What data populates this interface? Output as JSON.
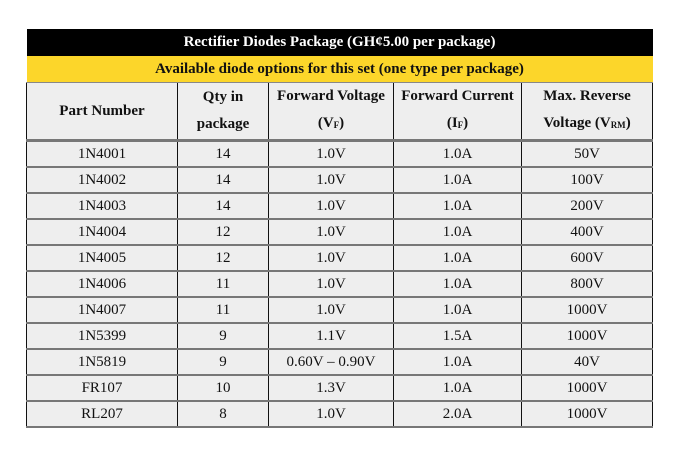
{
  "title": "Rectifier Diodes Package (GH¢5.00 per package)",
  "subtitle": "Available diode options for this set (one type per package)",
  "colors": {
    "title_bg": "#000000",
    "subtitle_bg": "#fcd62a",
    "row_bg": "#eeeeee"
  },
  "headers": {
    "part": "Part Number",
    "qty_1": "Qty in",
    "qty_2": "package",
    "vf_1": "Forward Voltage",
    "vf_2": "(V",
    "vf_sub": "F",
    "vf_end": ")",
    "if_1": "Forward Current",
    "if_2": "(I",
    "if_sub": "F",
    "if_end": ")",
    "vrm_1": "Max. Reverse",
    "vrm_2": "Voltage (V",
    "vrm_sub": "RM",
    "vrm_end": ")"
  },
  "rows": [
    [
      "1N4001",
      "14",
      "1.0V",
      "1.0A",
      "50V"
    ],
    [
      "1N4002",
      "14",
      "1.0V",
      "1.0A",
      "100V"
    ],
    [
      "1N4003",
      "14",
      "1.0V",
      "1.0A",
      "200V"
    ],
    [
      "1N4004",
      "12",
      "1.0V",
      "1.0A",
      "400V"
    ],
    [
      "1N4005",
      "12",
      "1.0V",
      "1.0A",
      "600V"
    ],
    [
      "1N4006",
      "11",
      "1.0V",
      "1.0A",
      "800V"
    ],
    [
      "1N4007",
      "11",
      "1.0V",
      "1.0A",
      "1000V"
    ],
    [
      "1N5399",
      "9",
      "1.1V",
      "1.5A",
      "1000V"
    ],
    [
      "1N5819",
      "9",
      "0.60V – 0.90V",
      "1.0A",
      "40V"
    ],
    [
      "FR107",
      "10",
      "1.3V",
      "1.0A",
      "1000V"
    ],
    [
      "RL207",
      "8",
      "1.0V",
      "2.0A",
      "1000V"
    ]
  ]
}
